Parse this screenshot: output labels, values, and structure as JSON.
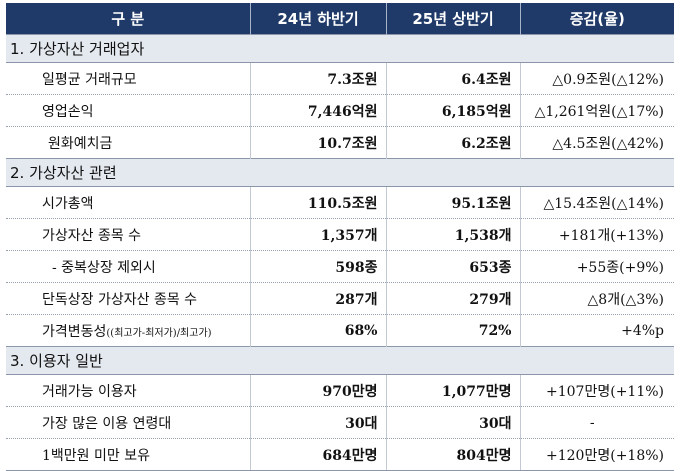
{
  "header": {
    "col1": "구 분",
    "col2": "24년 하반기",
    "col3": "25년 상반기",
    "col4": "증감(율)"
  },
  "sections": [
    {
      "title": "1. 가상자산 거래업자",
      "rows": [
        {
          "label": "일평균 거래규모",
          "h24": "7.3조원",
          "h25": "6.4조원",
          "change": "△0.9조원(△12%)"
        },
        {
          "label": "영업손익",
          "h24": "7,446억원",
          "h25": "6,185억원",
          "change": "△1,261억원(△17%)"
        },
        {
          "label": "원화예치금",
          "h24": "10.7조원",
          "h25": "6.2조원",
          "change": "△4.5조원(△42%)"
        }
      ]
    },
    {
      "title": "2. 가상자산 관련",
      "rows": [
        {
          "label": "시가총액",
          "h24": "110.5조원",
          "h25": "95.1조원",
          "change": "△15.4조원(△14%)"
        },
        {
          "label": "가상자산 종목 수",
          "h24": "1,357개",
          "h25": "1,538개",
          "change": "+181개(+13%)"
        },
        {
          "label": "- 중복상장 제외시",
          "h24": "598종",
          "h25": "653종",
          "change": "+55종(+9%)"
        },
        {
          "label": "단독상장 가상자산 종목 수",
          "h24": "287개",
          "h25": "279개",
          "change": "△8개(△3%)"
        },
        {
          "label": "가격변동성",
          "label_small": "((최고가-최저가)/최고가)",
          "h24": "68%",
          "h25": "72%",
          "change": "+4%p"
        }
      ]
    },
    {
      "title": "3. 이용자 일반",
      "rows": [
        {
          "label": "거래가능 이용자",
          "h24": "970만명",
          "h25": "1,077만명",
          "change": "+107만명(+11%)"
        },
        {
          "label": "가장 많은 이용 연령대",
          "h24": "30대",
          "h25": "30대",
          "change": "-"
        },
        {
          "label": "1백만원 미만 보유",
          "h24": "684만명",
          "h25": "804만명",
          "change": "+120만명(+18%)"
        }
      ]
    }
  ]
}
